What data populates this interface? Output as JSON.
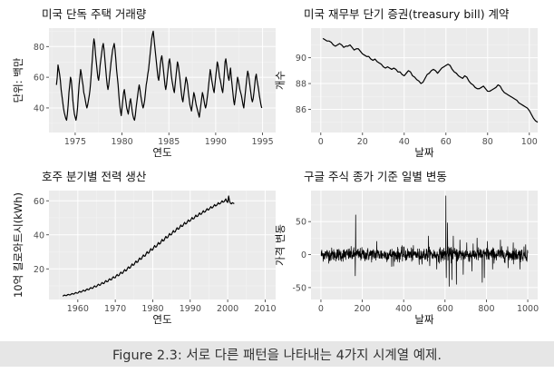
{
  "caption": "Figure 2.3: 서로 다른 패턴을 나타내는 4가지 시계열 예제.",
  "colors": {
    "panel_bg": "#ebebeb",
    "grid_major": "#ffffff",
    "grid_minor": "#f4f4f4",
    "line": "#000000"
  },
  "chart_data": [
    {
      "type": "line",
      "title": "미국 단독 주택 거래량",
      "xlabel": "연도",
      "ylabel": "단위: 백만",
      "xlim": [
        1972.2,
        1996.4
      ],
      "ylim": [
        24,
        92
      ],
      "xticks": [
        1975,
        1980,
        1985,
        1990,
        1995
      ],
      "yticks": [
        40,
        60,
        80
      ],
      "grid": true,
      "x_start": 1973.0,
      "x_step": 0.08333,
      "series": [
        {
          "values": [
            55,
            60,
            68,
            65,
            62,
            58,
            52,
            48,
            44,
            40,
            37,
            35,
            33,
            32,
            36,
            42,
            50,
            55,
            60,
            58,
            52,
            45,
            40,
            36,
            34,
            32,
            35,
            40,
            48,
            55,
            60,
            65,
            62,
            58,
            55,
            50,
            48,
            45,
            42,
            40,
            42,
            45,
            48,
            52,
            58,
            65,
            72,
            80,
            85,
            82,
            75,
            70,
            65,
            60,
            58,
            62,
            68,
            72,
            76,
            80,
            82,
            78,
            72,
            66,
            60,
            55,
            52,
            55,
            60,
            65,
            70,
            74,
            78,
            80,
            82,
            78,
            72,
            65,
            60,
            55,
            48,
            42,
            38,
            35,
            40,
            45,
            50,
            52,
            48,
            44,
            40,
            38,
            36,
            40,
            44,
            46,
            42,
            38,
            35,
            33,
            32,
            35,
            40,
            44,
            48,
            52,
            55,
            52,
            48,
            45,
            42,
            40,
            42,
            45,
            50,
            55,
            58,
            62,
            65,
            70,
            75,
            80,
            85,
            88,
            90,
            85,
            80,
            75,
            70,
            65,
            60,
            58,
            62,
            68,
            72,
            74,
            70,
            65,
            60,
            55,
            52,
            55,
            60,
            65,
            70,
            72,
            68,
            62,
            58,
            55,
            52,
            50,
            55,
            60,
            65,
            70,
            68,
            64,
            60,
            55,
            50,
            46,
            44,
            48,
            52,
            56,
            60,
            58,
            55,
            50,
            46,
            42,
            40,
            38,
            42,
            46,
            50,
            48,
            45,
            42,
            40,
            38,
            36,
            34,
            38,
            42,
            46,
            50,
            48,
            45,
            42,
            40,
            42,
            46,
            50,
            55,
            60,
            65,
            62,
            58,
            55,
            52,
            50,
            55,
            60,
            65,
            70,
            68,
            64,
            60,
            58,
            55,
            52,
            50,
            55,
            62,
            70,
            72,
            68,
            64,
            60,
            58,
            62,
            66,
            60,
            55,
            50,
            45,
            42,
            46,
            50,
            55,
            60,
            58,
            55,
            52,
            50,
            48,
            45,
            42,
            40,
            45,
            50,
            55,
            60,
            64,
            62,
            58,
            54,
            50,
            46,
            44,
            46,
            50,
            55,
            60,
            62,
            58,
            55,
            52,
            48,
            45,
            42,
            40
          ]
        }
      ]
    },
    {
      "type": "line",
      "title": "미국 재무부 단기 증권(treasury bill) 계약",
      "xlabel": "날짜",
      "ylabel": "개수",
      "xlim": [
        -4.7,
        104
      ],
      "ylim": [
        84.2,
        92.3
      ],
      "xticks": [
        0,
        20,
        40,
        60,
        80,
        100
      ],
      "yticks": [
        86,
        88,
        90
      ],
      "grid": true,
      "x_start": 1,
      "x_step": 1,
      "series": [
        {
          "values": [
            91.5,
            91.4,
            91.3,
            91.3,
            91.2,
            91.0,
            90.9,
            91.0,
            91.1,
            91.0,
            90.8,
            90.9,
            90.9,
            91.0,
            90.8,
            90.6,
            90.7,
            90.7,
            90.5,
            90.3,
            90.2,
            90.1,
            90.1,
            89.9,
            89.8,
            89.9,
            89.7,
            89.6,
            89.5,
            89.3,
            89.2,
            89.3,
            89.2,
            89.1,
            89.2,
            89.1,
            88.9,
            88.9,
            88.7,
            88.6,
            88.8,
            89.0,
            88.9,
            88.6,
            88.5,
            88.3,
            88.2,
            88.0,
            88.1,
            88.4,
            88.7,
            88.8,
            89.0,
            89.1,
            89.0,
            88.8,
            89.0,
            89.2,
            89.3,
            89.4,
            89.5,
            89.4,
            89.1,
            88.9,
            88.8,
            88.6,
            88.5,
            88.4,
            88.6,
            88.5,
            88.2,
            88.0,
            87.9,
            87.7,
            87.6,
            87.6,
            87.7,
            87.8,
            87.6,
            87.4,
            87.4,
            87.5,
            87.6,
            87.7,
            87.9,
            87.8,
            87.5,
            87.3,
            87.2,
            87.1,
            87.0,
            86.9,
            86.8,
            86.7,
            86.5,
            86.4,
            86.3,
            86.2,
            86.1,
            85.9,
            85.6,
            85.3,
            85.1,
            85.0,
            85.2,
            85.4,
            85.5,
            85.4,
            85.2,
            85.0,
            84.9,
            84.8,
            84.7,
            84.5,
            84.6,
            84.8,
            85.0,
            85.1,
            85.3,
            85.3
          ]
        }
      ]
    },
    {
      "type": "line",
      "title": "호주 분기별 전력 생산",
      "xlabel": "연도",
      "ylabel": "10억 킬로와트시(kWh)",
      "xlim": [
        1952.3,
        2012.8
      ],
      "ylim": [
        2,
        66
      ],
      "xticks": [
        1960,
        1970,
        1980,
        1990,
        2000,
        2010
      ],
      "yticks": [
        20,
        40,
        60
      ],
      "grid": true,
      "x_start": 1956.0,
      "x_step": 0.25,
      "series": [
        {
          "values": [
            3.9,
            4.4,
            4.6,
            4.3,
            4.3,
            4.8,
            5.0,
            4.7,
            4.7,
            5.2,
            5.5,
            5.2,
            5.2,
            5.8,
            6.1,
            5.7,
            5.7,
            6.4,
            6.8,
            6.3,
            6.4,
            7.1,
            7.5,
            7.0,
            7.0,
            7.8,
            8.2,
            7.7,
            7.8,
            8.6,
            9.0,
            8.5,
            8.6,
            9.5,
            10.0,
            9.4,
            9.5,
            10.4,
            11.0,
            10.4,
            10.4,
            11.4,
            12.0,
            11.3,
            11.4,
            12.5,
            13.1,
            12.4,
            12.5,
            13.6,
            14.2,
            13.5,
            13.6,
            14.8,
            15.4,
            14.7,
            14.8,
            16.0,
            16.7,
            15.9,
            16.1,
            17.3,
            18.1,
            17.3,
            17.5,
            18.7,
            19.6,
            18.8,
            19.0,
            20.3,
            21.2,
            20.4,
            20.6,
            21.9,
            22.9,
            22.1,
            22.3,
            23.6,
            24.6,
            23.8,
            24.0,
            25.4,
            26.4,
            25.6,
            25.8,
            27.2,
            28.2,
            27.4,
            27.6,
            29.0,
            30.1,
            29.2,
            29.4,
            30.8,
            31.9,
            31.0,
            31.2,
            32.6,
            33.7,
            32.8,
            33.0,
            34.3,
            35.5,
            34.6,
            34.8,
            36.2,
            37.3,
            36.4,
            36.6,
            38.0,
            39.1,
            38.2,
            38.4,
            39.7,
            40.8,
            39.9,
            40.1,
            41.4,
            42.5,
            41.6,
            41.8,
            43.1,
            44.2,
            43.3,
            43.5,
            44.7,
            45.8,
            44.9,
            45.1,
            46.3,
            47.3,
            46.4,
            46.6,
            47.8,
            48.8,
            47.9,
            48.1,
            49.2,
            50.2,
            49.3,
            49.5,
            50.6,
            51.6,
            50.7,
            50.9,
            52.0,
            52.9,
            52.0,
            52.2,
            53.2,
            54.2,
            53.3,
            53.5,
            54.5,
            55.4,
            54.6,
            54.8,
            55.7,
            56.6,
            55.8,
            56.0,
            56.9,
            57.8,
            57.0,
            57.2,
            58.0,
            58.9,
            58.1,
            58.3,
            59.1,
            60.0,
            59.2,
            59.4,
            60.2,
            61.1,
            59.6,
            59.0,
            62.8,
            59.8,
            58.5,
            58.2,
            58.9,
            58.6,
            58.3
          ]
        }
      ]
    },
    {
      "type": "line",
      "title": "구글 주식 종가 기준 일별 변동",
      "xlabel": "날짜",
      "ylabel": "가격 변동",
      "xlim": [
        -48,
        1048
      ],
      "ylim": [
        -68,
        97
      ],
      "xticks": [
        0,
        200,
        400,
        600,
        800,
        1000
      ],
      "yticks": [
        -50,
        0,
        50
      ],
      "grid": true,
      "x_start": 1,
      "x_step": 1,
      "noise_sd": 5,
      "spikes": [
        [
          168,
          60
        ],
        [
          166,
          -32
        ],
        [
          270,
          20
        ],
        [
          342,
          -18
        ],
        [
          400,
          12
        ],
        [
          475,
          -15
        ],
        [
          520,
          28
        ],
        [
          560,
          -22
        ],
        [
          604,
          89
        ],
        [
          606,
          -35
        ],
        [
          612,
          48
        ],
        [
          620,
          -48
        ],
        [
          633,
          -38
        ],
        [
          640,
          28
        ],
        [
          655,
          -45
        ],
        [
          672,
          22
        ],
        [
          688,
          -30
        ],
        [
          705,
          18
        ],
        [
          730,
          -25
        ],
        [
          755,
          25
        ],
        [
          780,
          -42
        ],
        [
          790,
          -35
        ],
        [
          805,
          20
        ],
        [
          830,
          -22
        ],
        [
          868,
          22
        ],
        [
          905,
          -20
        ],
        [
          930,
          18
        ],
        [
          962,
          -22
        ],
        [
          990,
          15
        ]
      ]
    }
  ]
}
